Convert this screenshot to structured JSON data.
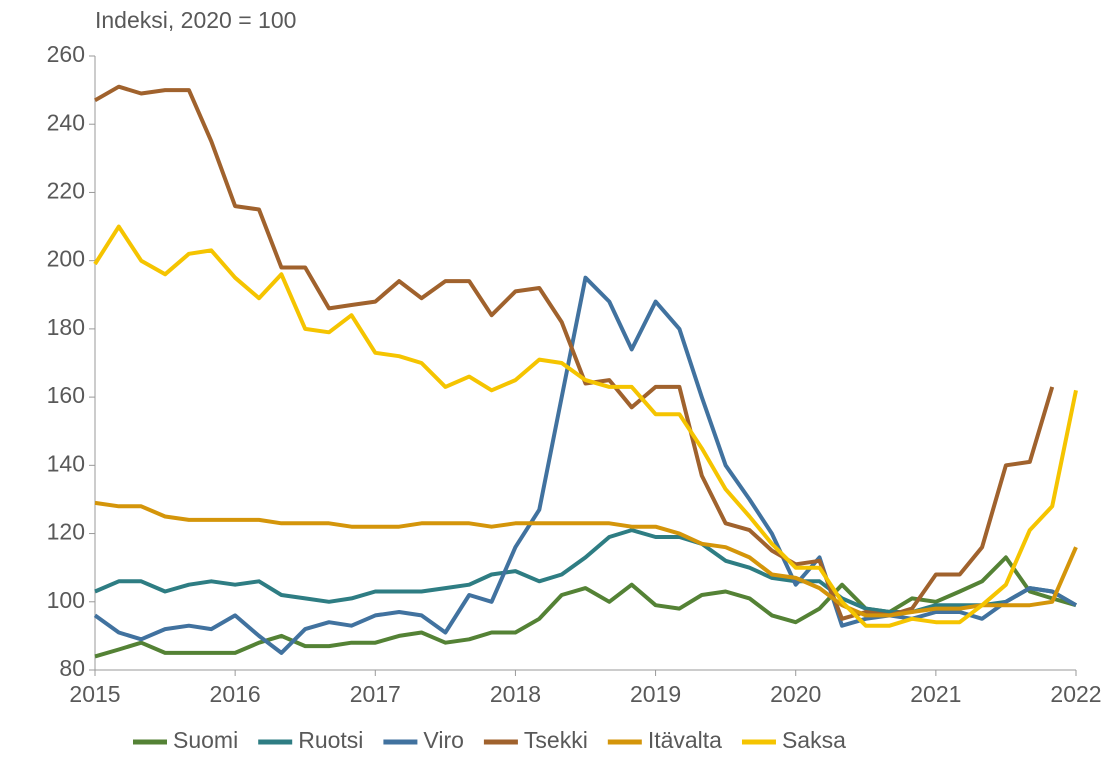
{
  "chart_data": {
    "type": "line",
    "ylabel": "Indeksi, 2020 = 100",
    "x": [
      2015,
      2015.17,
      2015.33,
      2015.5,
      2015.67,
      2015.83,
      2016,
      2016.17,
      2016.33,
      2016.5,
      2016.67,
      2016.83,
      2017,
      2017.17,
      2017.33,
      2017.5,
      2017.67,
      2017.83,
      2018,
      2018.17,
      2018.33,
      2018.5,
      2018.67,
      2018.83,
      2019,
      2019.17,
      2019.33,
      2019.5,
      2019.67,
      2019.83,
      2020,
      2020.17,
      2020.33,
      2020.5,
      2020.67,
      2020.83,
      2021,
      2021.17,
      2021.33,
      2021.5,
      2021.67,
      2021.83,
      2022
    ],
    "xlim": [
      2015,
      2022
    ],
    "xticks": [
      2015,
      2016,
      2017,
      2018,
      2019,
      2020,
      2021,
      2022
    ],
    "ylim": [
      80,
      260
    ],
    "yticks": [
      80,
      100,
      120,
      140,
      160,
      180,
      200,
      220,
      240,
      260
    ],
    "legend": "bottom",
    "series": [
      {
        "name": "Suomi",
        "color": "#548235",
        "values": [
          84,
          86,
          88,
          85,
          85,
          85,
          85,
          88,
          90,
          87,
          87,
          88,
          88,
          90,
          91,
          88,
          89,
          91,
          91,
          95,
          102,
          104,
          100,
          105,
          99,
          98,
          102,
          103,
          101,
          96,
          94,
          98,
          105,
          98,
          97,
          101,
          100,
          103,
          106,
          113,
          103,
          101,
          99
        ]
      },
      {
        "name": "Ruotsi",
        "color": "#2e7d83",
        "values": [
          103,
          106,
          106,
          103,
          105,
          106,
          105,
          106,
          102,
          101,
          100,
          101,
          103,
          103,
          103,
          104,
          105,
          108,
          109,
          106,
          108,
          113,
          119,
          121,
          119,
          119,
          117,
          112,
          110,
          107,
          106,
          106,
          101,
          98,
          97,
          97,
          99,
          99,
          99,
          100,
          104,
          103,
          99
        ]
      },
      {
        "name": "Viro",
        "color": "#41729f",
        "values": [
          96,
          91,
          89,
          92,
          93,
          92,
          96,
          90,
          85,
          92,
          94,
          93,
          96,
          97,
          96,
          91,
          102,
          100,
          116,
          127,
          160,
          195,
          188,
          174,
          188,
          180,
          160,
          140,
          130,
          120,
          105,
          113,
          93,
          95,
          96,
          95,
          97,
          97,
          95,
          100,
          104,
          103,
          99
        ]
      },
      {
        "name": "Tsekki",
        "color": "#a0622d",
        "values": [
          247,
          251,
          249,
          250,
          250,
          235,
          216,
          215,
          198,
          198,
          186,
          187,
          188,
          194,
          189,
          194,
          194,
          184,
          191,
          192,
          182,
          164,
          165,
          157,
          163,
          163,
          137,
          123,
          121,
          115,
          111,
          112,
          95,
          97,
          96,
          98,
          108,
          108,
          116,
          140,
          141,
          163,
          null
        ]
      },
      {
        "name": "Itävalta",
        "color": "#d4950a",
        "values": [
          129,
          128,
          128,
          125,
          124,
          124,
          124,
          124,
          123,
          123,
          123,
          122,
          122,
          122,
          123,
          123,
          123,
          122,
          123,
          123,
          123,
          123,
          123,
          122,
          122,
          120,
          117,
          116,
          113,
          108,
          107,
          104,
          99,
          96,
          96,
          97,
          98,
          98,
          99,
          99,
          99,
          100,
          116
        ]
      },
      {
        "name": "Saksa",
        "color": "#f5c400",
        "values": [
          199,
          210,
          200,
          196,
          202,
          203,
          195,
          189,
          196,
          180,
          179,
          184,
          173,
          172,
          170,
          163,
          166,
          162,
          165,
          171,
          170,
          165,
          163,
          163,
          155,
          155,
          145,
          133,
          125,
          117,
          110,
          110,
          100,
          93,
          93,
          95,
          94,
          94,
          99,
          105,
          121,
          128,
          162
        ]
      }
    ]
  }
}
